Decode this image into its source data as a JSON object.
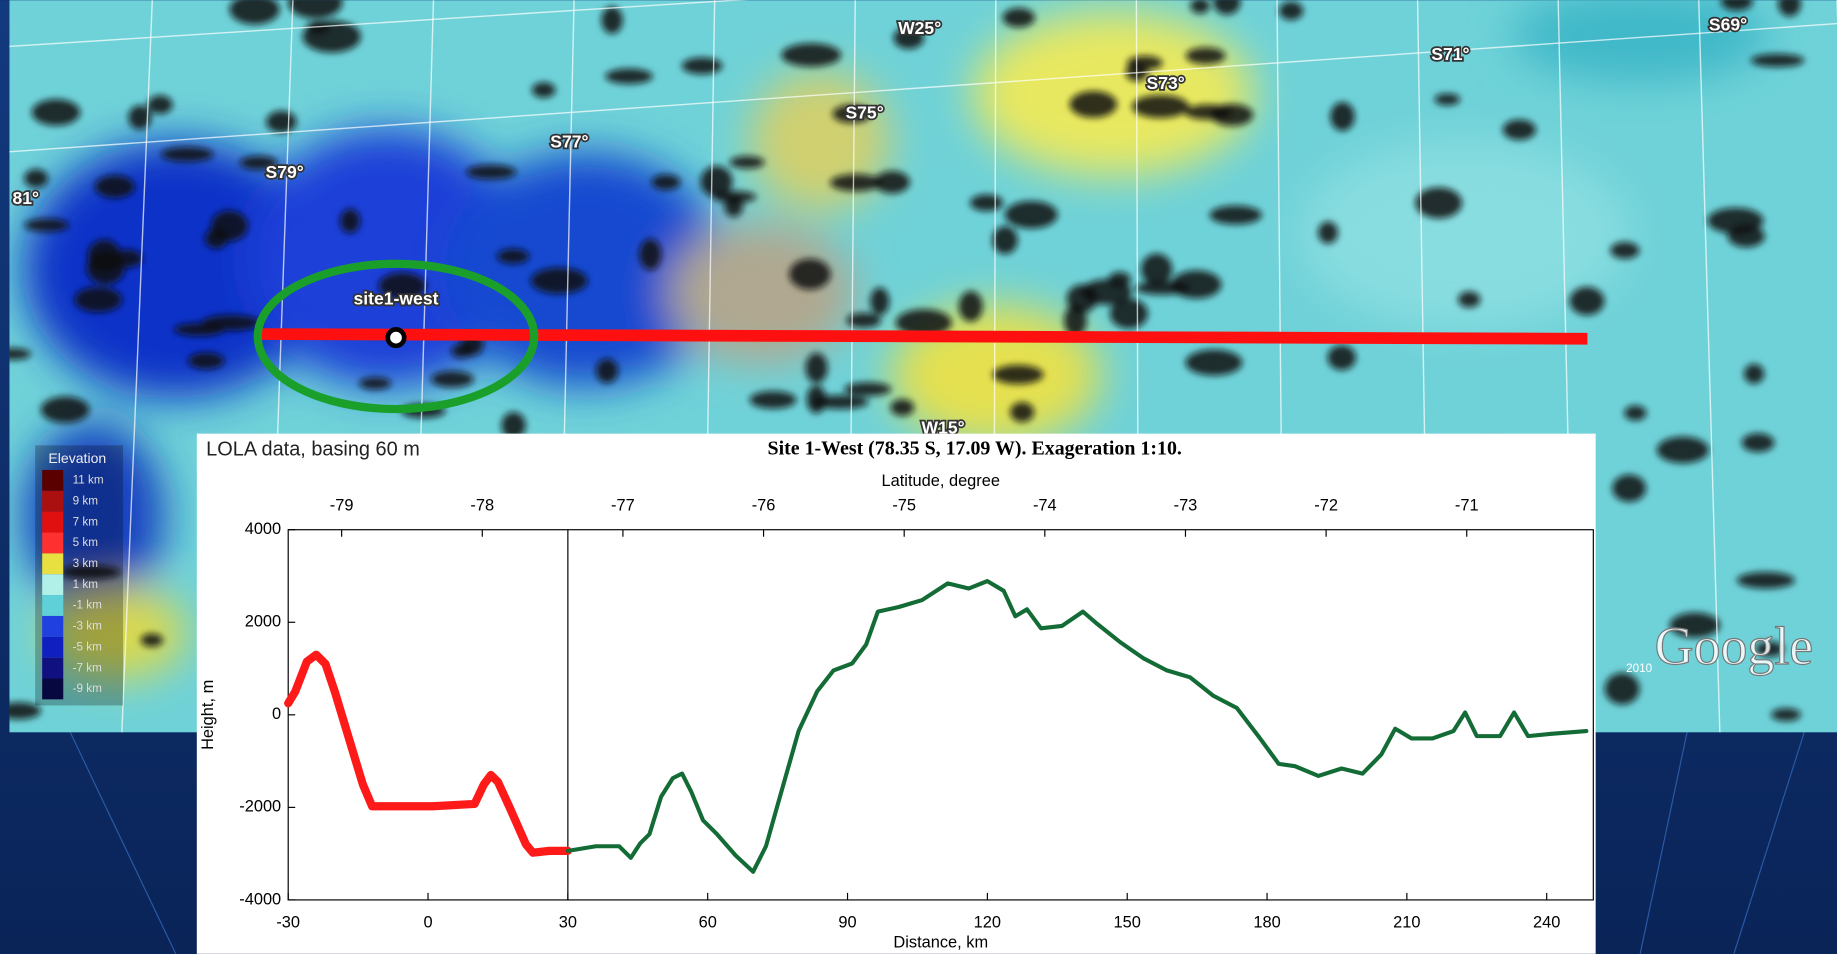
{
  "chart_data": {
    "type": "line",
    "title": "Site 1-West (78.35 S, 17.09 W). Exageration 1:10.",
    "annotation": "LOLA data, basing 60 m",
    "x_label": "Distance, km",
    "y_label": "Height, m",
    "x2_label": "Latitude, degree",
    "xlim": [
      -30,
      250
    ],
    "xticks": [
      -30,
      0,
      30,
      60,
      90,
      120,
      150,
      180,
      210,
      240
    ],
    "ylim": [
      -4000,
      4000
    ],
    "yticks": [
      -4000,
      -2000,
      0,
      2000,
      4000
    ],
    "x2lim": [
      -79.38,
      -70.1
    ],
    "x2ticks": [
      -79,
      -78,
      -77,
      -76,
      -75,
      -74,
      -73,
      -72,
      -71
    ],
    "vline": 30,
    "series": [
      {
        "color": "#ff1a1a",
        "x": [
          -30,
          -28.5,
          -26,
          -24,
          -22,
          -20,
          -17,
          -14,
          -12,
          -6.5,
          1,
          10,
          12,
          13.5,
          15,
          17.5,
          21,
          22.5,
          26,
          30
        ],
        "values": [
          250,
          500,
          1150,
          1300,
          1100,
          500,
          -500,
          -1500,
          -1975,
          -1975,
          -1975,
          -1925,
          -1500,
          -1300,
          -1450,
          -2000,
          -2800,
          -2980,
          -2940,
          -2940
        ]
      },
      {
        "color": "#136b35",
        "x": [
          30,
          36,
          41,
          43.5,
          45.5,
          47.5,
          50,
          52.5,
          54.5,
          56.5,
          59,
          62,
          66,
          69.75,
          72.5,
          75.5,
          79.5,
          83.5,
          87,
          91,
          94,
          96.5,
          101,
          106,
          111.5,
          116,
          120,
          123.5,
          126,
          128.5,
          131.5,
          136,
          140.5,
          143.5,
          148.5,
          153.5,
          158.5,
          163.5,
          168.5,
          173.5,
          178.5,
          182.5,
          186,
          191,
          196,
          200.5,
          204.5,
          207.5,
          211,
          215.5,
          220,
          222.5,
          225,
          230,
          233,
          236,
          241,
          248.5
        ],
        "values": [
          -2940,
          -2840,
          -2840,
          -3090,
          -2780,
          -2580,
          -1770,
          -1370,
          -1270,
          -1670,
          -2280,
          -2580,
          -3040,
          -3390,
          -2840,
          -1770,
          -350,
          510,
          960,
          1110,
          1520,
          2230,
          2330,
          2480,
          2840,
          2730,
          2890,
          2680,
          2130,
          2280,
          1870,
          1920,
          2230,
          1970,
          1570,
          1220,
          960,
          810,
          410,
          150,
          -510,
          -1060,
          -1110,
          -1320,
          -1160,
          -1270,
          -860,
          -300,
          -510,
          -510,
          -350,
          50,
          -460,
          -460,
          50,
          -460,
          -410,
          -350
        ]
      }
    ]
  },
  "map": {
    "labels": [
      "W25°",
      "S73°",
      "S71°",
      "S69°",
      "S75°",
      "S77°",
      "S79°",
      "81°",
      "W15°"
    ],
    "site": "site1-west",
    "credit": "Google",
    "year": "2010",
    "legend": {
      "title": "Elevation",
      "items": [
        "11 km",
        "9 km",
        "7 km",
        "5 km",
        "3 km",
        "1 km",
        "-1 km",
        "-3 km",
        "-5 km",
        "-7 km",
        "-9 km"
      ]
    }
  }
}
